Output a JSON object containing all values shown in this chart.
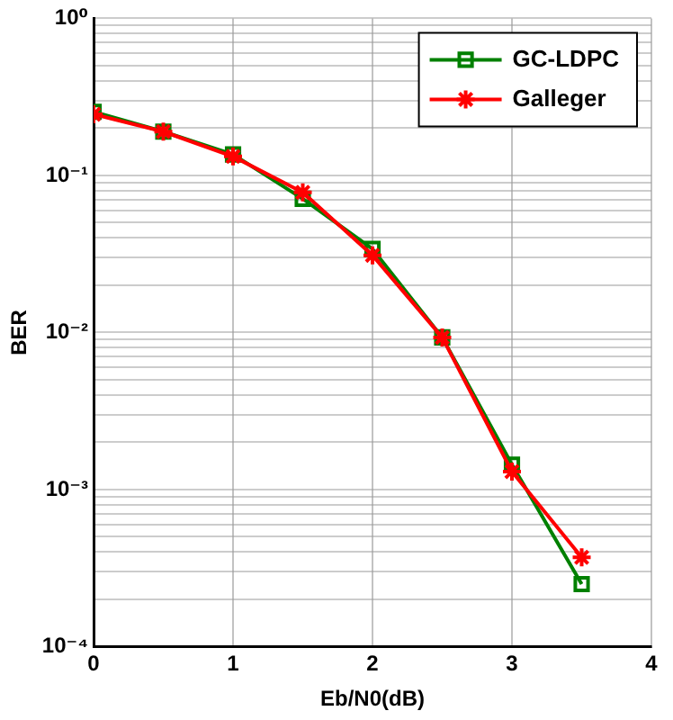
{
  "chart_data": {
    "type": "line",
    "xlabel": "Eb/N0(dB)",
    "ylabel": "BER",
    "x": [
      0,
      0.5,
      1,
      1.5,
      2,
      2.5,
      3,
      3.5
    ],
    "series": [
      {
        "name": "GC-LDPC",
        "color": "#008000",
        "marker": "square",
        "values": [
          0.254,
          0.19,
          0.136,
          0.071,
          0.034,
          0.0093,
          0.00144,
          0.00025
        ]
      },
      {
        "name": "Galleger",
        "color": "#ff0000",
        "marker": "cross",
        "values": [
          0.245,
          0.19,
          0.132,
          0.078,
          0.031,
          0.0093,
          0.0013,
          0.00037
        ]
      }
    ],
    "log": "y",
    "grid": true,
    "legend": "top right",
    "line_style": "solid",
    "xlim": [
      0,
      4
    ],
    "xticks": [
      0,
      1,
      2,
      3,
      4
    ],
    "ylim": [
      0.0001,
      1
    ],
    "yticks": [
      {
        "value": 0.0001,
        "label": "10⁻⁴"
      },
      {
        "value": 0.0002,
        "label": null
      },
      {
        "value": 0.0003,
        "label": null
      },
      {
        "value": 0.0004,
        "label": null
      },
      {
        "value": 0.0005,
        "label": null
      },
      {
        "value": 0.0006,
        "label": null
      },
      {
        "value": 0.0007,
        "label": null
      },
      {
        "value": 0.0008,
        "label": null
      },
      {
        "value": 0.0009,
        "label": null
      },
      {
        "value": 0.001,
        "label": "10⁻³"
      },
      {
        "value": 0.002,
        "label": null
      },
      {
        "value": 0.003,
        "label": null
      },
      {
        "value": 0.004,
        "label": null
      },
      {
        "value": 0.005,
        "label": null
      },
      {
        "value": 0.006,
        "label": null
      },
      {
        "value": 0.007,
        "label": null
      },
      {
        "value": 0.008,
        "label": null
      },
      {
        "value": 0.009,
        "label": null
      },
      {
        "value": 0.01,
        "label": "10⁻²"
      },
      {
        "value": 0.02,
        "label": null
      },
      {
        "value": 0.03,
        "label": null
      },
      {
        "value": 0.04,
        "label": null
      },
      {
        "value": 0.05,
        "label": null
      },
      {
        "value": 0.06,
        "label": null
      },
      {
        "value": 0.07,
        "label": null
      },
      {
        "value": 0.08,
        "label": null
      },
      {
        "value": 0.09,
        "label": null
      },
      {
        "value": 0.1,
        "label": "10⁻¹"
      },
      {
        "value": 0.2,
        "label": null
      },
      {
        "value": 0.3,
        "label": null
      },
      {
        "value": 0.4,
        "label": null
      },
      {
        "value": 0.5,
        "label": null
      },
      {
        "value": 0.6,
        "label": null
      },
      {
        "value": 0.7,
        "label": null
      },
      {
        "value": 0.8,
        "label": null
      },
      {
        "value": 0.9,
        "label": null
      },
      {
        "value": 1,
        "label": "10⁰"
      }
    ]
  }
}
